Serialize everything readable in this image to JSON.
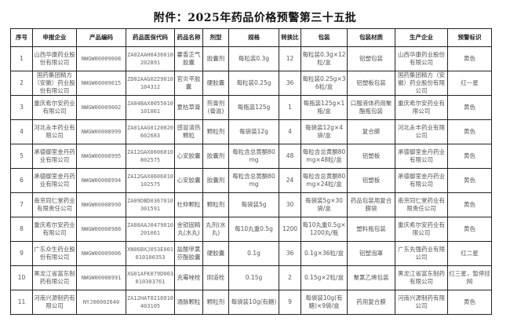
{
  "title": "附件：2025年药品价格预警第三十五批",
  "headers": [
    "序号",
    "申报企业",
    "产品编码",
    "药品医保代码",
    "药品名称",
    "剂型",
    "规格",
    "转换比",
    "包装",
    "包装材质",
    "生产企业",
    "预警标识"
  ],
  "rows": [
    [
      "1",
      "山西华康药业股份有限公司",
      "NWGW00009008",
      "ZA02AAH0436010202891",
      "藿香正气胶囊",
      "胶囊剂",
      "每粒装0.3g",
      "12",
      "每粒装0.3g×12粒/盒",
      "铝塑包装",
      "山西华康药业股份有限公司",
      "黄色"
    ],
    [
      "2",
      "国药集团精方（安徽）药业股份有限公司",
      "NWGW00009015",
      "ZD02AAG0229010104312",
      "官炎平胶囊",
      "硬胶囊",
      "每粒装0.25g",
      "36",
      "每粒装0.25g×36粒/盒",
      "铝塑板包装",
      "国药集团精方（安徽）药业股份有限公司",
      "红一星"
    ],
    [
      "3",
      "重庆希尔安药业有限公司",
      "NWGW00009002",
      "ZA04BAX0055010101061",
      "夏枯草膏",
      "煎膏剂(膏滋)",
      "每瓶装125g",
      "1",
      "每瓶装125g×1瓶/盒",
      "口服液体药用聚酯瓶包装",
      "重庆希尔安药业有限公司",
      "黄色"
    ],
    [
      "4",
      "河北永丰药业有限公司",
      "NWGW00008999",
      "ZA01AAG0120020602683",
      "感冒清热颗粒",
      "颗粒剂",
      "每袋装12g",
      "4",
      "每袋装12g×4袋/盒",
      "复合膜",
      "河北永丰药业有限公司",
      "黄色"
    ],
    [
      "5",
      "承德御室金丹药业有限公司",
      "NWGW00008995",
      "ZA12GAX0606010802575",
      "心安胶囊",
      "胶囊剂",
      "每粒含总黄酮80mg",
      "48",
      "每粒含总黄酮80mg×48粒/盒",
      "铝塑板",
      "承德御室金丹药业有限公司",
      "黄色"
    ],
    [
      "6",
      "承德御室金丹药业有限公司",
      "NWGW00008994",
      "ZA12GAX0606010102575",
      "心安胶囊",
      "胶囊剂",
      "每粒含总黄酮80mg",
      "24",
      "每粒含总黄酮80mg×24粒/盒",
      "铝塑板",
      "承德御室金丹药业有限公司",
      "黄色"
    ],
    [
      "7",
      "南京同仁堂药业有限责任公司",
      "NWGW00008990",
      "ZA09DBD0367010301591",
      "杜仲颗粒",
      "颗粒剂",
      "每袋装5g",
      "30",
      "每袋装5g×30袋/盒",
      "药品包装用复合膜袋",
      "南京同仁堂药业有限责任公司",
      "黄色"
    ],
    [
      "8",
      "重庆希尔安药业有限公司",
      "NWGW00008988",
      "ZA08AAJ0479010201061",
      "金锁固精丸(水丸)",
      "丸剂(水丸)",
      "每10丸重0.5g",
      "1200",
      "每10丸重0.5g×1200丸/瓶",
      "塑料瓶包装",
      "重庆希尔安药业有限公司",
      "黄色"
    ],
    [
      "9",
      "广东众生药业股份有限公司",
      "NWGW00009006",
      "XN06BXJ053E001010100353",
      "盐酸甲氯芬酯胶囊",
      "硬胶囊",
      "0.1g",
      "36",
      "0.1g×36粒/盒",
      "铝塑泡罩",
      "广东先强药业有限公司",
      "红二星"
    ],
    [
      "10",
      "黑龙江省富东制药有限公司",
      "NWGW00008991",
      "XG01AFK079D003010303761",
      "克霉唑栓",
      "阴道栓",
      "0.15g",
      "2",
      "0.15g×2粒/盒",
      "聚氯乙烯包装",
      "黑龙江省富东制药有限公司",
      "红三星，暂停挂网"
    ],
    [
      "11",
      "河南兴源制药有限公司",
      "NYJ00002640",
      "ZA12HAT0216010403105",
      "通脉颗粒",
      "颗粒剂",
      "每袋装10g(有糖)",
      "9",
      "每袋装10g(有糖)×9袋/盒",
      "药用复合膜",
      "河南兴源制药有限公司",
      "黄色"
    ]
  ]
}
